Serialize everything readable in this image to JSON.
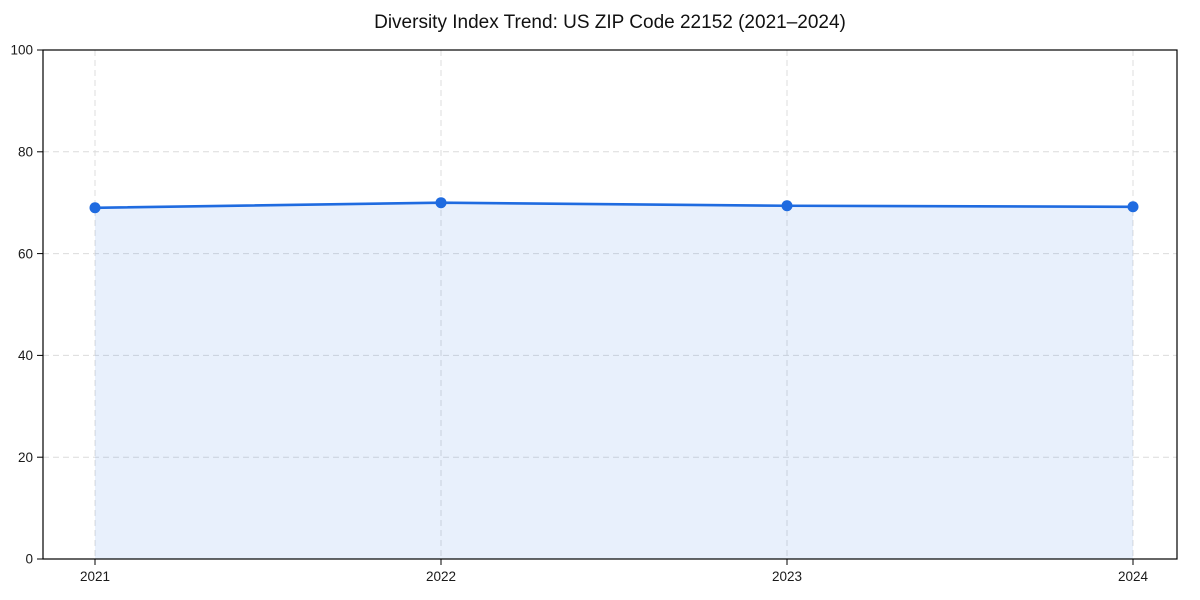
{
  "page": {
    "background": "#ffffff"
  },
  "chart_data": {
    "type": "area",
    "title": "Diversity Index Trend: US ZIP Code 22152 (2021–2024)",
    "categories": [
      "2021",
      "2022",
      "2023",
      "2024"
    ],
    "values": [
      69,
      70,
      69.4,
      69.2
    ],
    "xlabel": "",
    "ylabel": "",
    "ylim": [
      0,
      100
    ],
    "yticks": [
      0,
      20,
      40,
      60,
      80,
      100
    ],
    "grid": "dashed-both-axes",
    "legend": "none",
    "line_color": "#1f6be0",
    "marker": "circle",
    "marker_radius": 5.5,
    "line_width": 2.6,
    "fill_opacity": 0.1,
    "grid_color": "#dcdcdc",
    "spine_color": "#000000",
    "tick_label_color": "#1a1a1a",
    "title_color": "#111111"
  }
}
